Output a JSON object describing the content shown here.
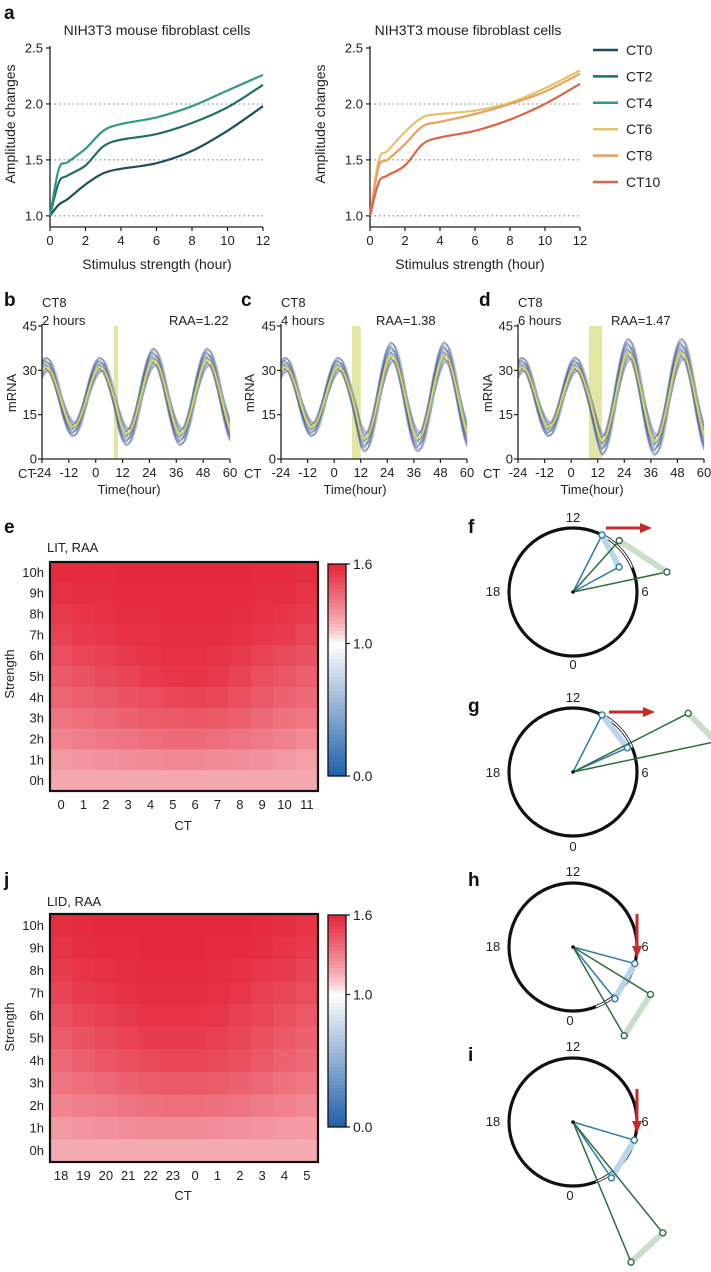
{
  "panels": {
    "a": "a",
    "b": "b",
    "c": "c",
    "d": "d",
    "e": "e",
    "f": "f",
    "g": "g",
    "h": "h",
    "i": "i",
    "j": "j"
  },
  "chart_data": [
    {
      "id": "a-left",
      "type": "line",
      "title": "NIH3T3 mouse fibroblast cells",
      "xlabel": "Stimulus strength (hour)",
      "ylabel": "Amplitude changes",
      "xlim": [
        0,
        12
      ],
      "ylim": [
        0.9,
        2.5
      ],
      "xticks": [
        0,
        2,
        4,
        6,
        8,
        10,
        12
      ],
      "yticks": [
        1.0,
        1.5,
        2.0,
        2.5
      ],
      "ytick_labels": [
        "1.0",
        "1.5",
        "2.0",
        "2.5"
      ],
      "hgrid_dotted": [
        1.0,
        1.5,
        2.0
      ],
      "x": [
        0,
        0.5,
        1,
        2,
        3,
        4,
        6,
        8,
        10,
        12
      ],
      "series": [
        {
          "name": "CT0",
          "color": "#1d4e5c",
          "values": [
            1.0,
            1.1,
            1.15,
            1.28,
            1.38,
            1.42,
            1.47,
            1.58,
            1.76,
            1.98
          ]
        },
        {
          "name": "CT2",
          "color": "#1d6d6b",
          "values": [
            1.0,
            1.3,
            1.36,
            1.45,
            1.62,
            1.68,
            1.73,
            1.83,
            1.97,
            2.17
          ]
        },
        {
          "name": "CT4",
          "color": "#2e9a8c",
          "values": [
            1.0,
            1.42,
            1.48,
            1.6,
            1.76,
            1.82,
            1.88,
            1.98,
            2.12,
            2.26
          ]
        }
      ]
    },
    {
      "id": "a-right",
      "type": "line",
      "title": "NIH3T3 mouse fibroblast cells",
      "xlabel": "Stimulus strength (hour)",
      "ylabel": "Amplitude changes",
      "xlim": [
        0,
        12
      ],
      "ylim": [
        0.9,
        2.5
      ],
      "xticks": [
        0,
        2,
        4,
        6,
        8,
        10,
        12
      ],
      "yticks": [
        1.0,
        1.5,
        2.0,
        2.5
      ],
      "ytick_labels": [
        "1.0",
        "1.5",
        "2.0",
        "2.5"
      ],
      "hgrid_dotted": [
        1.0,
        1.5,
        2.0
      ],
      "x": [
        0,
        0.5,
        1,
        2,
        3,
        4,
        6,
        8,
        10,
        12
      ],
      "series": [
        {
          "name": "CT6",
          "color": "#e3c46a",
          "values": [
            1.0,
            1.5,
            1.58,
            1.75,
            1.88,
            1.91,
            1.94,
            2.01,
            2.14,
            2.3
          ]
        },
        {
          "name": "CT8",
          "color": "#eba05c",
          "values": [
            1.0,
            1.44,
            1.5,
            1.64,
            1.8,
            1.84,
            1.91,
            2.0,
            2.11,
            2.27
          ]
        },
        {
          "name": "CT10",
          "color": "#db6447",
          "values": [
            1.0,
            1.3,
            1.36,
            1.45,
            1.64,
            1.7,
            1.76,
            1.86,
            2.0,
            2.18
          ]
        }
      ],
      "legend_position": "right"
    },
    {
      "id": "b",
      "type": "line",
      "ct_label": "CT8",
      "duration": "2 hours",
      "r_aa": "RAA=1.22",
      "xlabel": "Time(hour)",
      "ylabel": "mRNA",
      "xlim": [
        -24,
        60
      ],
      "ylim": [
        0,
        45
      ],
      "xticks": [
        -24,
        -12,
        0,
        12,
        24,
        36,
        48,
        60
      ],
      "yticks": [
        0,
        15,
        30,
        45
      ],
      "axis_prefix": "CT",
      "stimulus_window": [
        8,
        10
      ],
      "mean_amplitude_before": 11,
      "mean_amplitude_after": 13.5,
      "baseline": 21,
      "period": 24
    },
    {
      "id": "c",
      "type": "line",
      "ct_label": "CT8",
      "duration": "4 hours",
      "r_aa": "RAA=1.38",
      "xlabel": "Time(hour)",
      "ylabel": "mRNA",
      "xlim": [
        -24,
        60
      ],
      "ylim": [
        0,
        45
      ],
      "xticks": [
        -24,
        -12,
        0,
        12,
        24,
        36,
        48,
        60
      ],
      "yticks": [
        0,
        15,
        30,
        45
      ],
      "axis_prefix": "CT",
      "stimulus_window": [
        8,
        12
      ],
      "mean_amplitude_before": 11,
      "mean_amplitude_after": 15.2,
      "baseline": 21,
      "period": 24
    },
    {
      "id": "d",
      "type": "line",
      "ct_label": "CT8",
      "duration": "6 hours",
      "r_aa": "RAA=1.47",
      "xlabel": "Time(hour)",
      "ylabel": "mRNA",
      "xlim": [
        -24,
        60
      ],
      "ylim": [
        0,
        45
      ],
      "xticks": [
        -24,
        -12,
        0,
        12,
        24,
        36,
        48,
        60
      ],
      "yticks": [
        0,
        15,
        30,
        45
      ],
      "axis_prefix": "CT",
      "stimulus_window": [
        8,
        14
      ],
      "mean_amplitude_before": 11,
      "mean_amplitude_after": 16.2,
      "baseline": 21,
      "period": 24
    },
    {
      "id": "e",
      "type": "heatmap",
      "title": "LIT, RAA",
      "xlabel": "CT",
      "ylabel": "Strength",
      "xticks": [
        "0",
        "1",
        "2",
        "3",
        "4",
        "5",
        "6",
        "7",
        "8",
        "9",
        "10",
        "11"
      ],
      "yticks": [
        "10h",
        "9h",
        "8h",
        "7h",
        "6h",
        "5h",
        "4h",
        "3h",
        "2h",
        "1h",
        "0h"
      ],
      "colorbar": {
        "min": 0.0,
        "max": 1.6,
        "ticks": [
          "1.6",
          "1.0",
          "0.0"
        ],
        "low_color": "#1f5fa8",
        "mid_color": "#ffffff",
        "high_color": "#e5263a"
      },
      "values": [
        [
          1.58,
          1.58,
          1.58,
          1.59,
          1.59,
          1.59,
          1.59,
          1.59,
          1.59,
          1.58,
          1.58,
          1.57
        ],
        [
          1.56,
          1.57,
          1.57,
          1.58,
          1.58,
          1.58,
          1.58,
          1.58,
          1.58,
          1.57,
          1.57,
          1.55
        ],
        [
          1.53,
          1.55,
          1.56,
          1.57,
          1.57,
          1.58,
          1.58,
          1.58,
          1.57,
          1.56,
          1.55,
          1.52
        ],
        [
          1.5,
          1.52,
          1.54,
          1.56,
          1.56,
          1.57,
          1.57,
          1.57,
          1.56,
          1.54,
          1.52,
          1.48
        ],
        [
          1.46,
          1.48,
          1.51,
          1.53,
          1.55,
          1.56,
          1.56,
          1.55,
          1.53,
          1.5,
          1.47,
          1.44
        ],
        [
          1.42,
          1.44,
          1.47,
          1.49,
          1.52,
          1.54,
          1.55,
          1.53,
          1.5,
          1.46,
          1.43,
          1.4
        ],
        [
          1.38,
          1.4,
          1.42,
          1.44,
          1.46,
          1.48,
          1.5,
          1.48,
          1.45,
          1.42,
          1.39,
          1.36
        ],
        [
          1.33,
          1.35,
          1.37,
          1.39,
          1.41,
          1.42,
          1.43,
          1.42,
          1.4,
          1.37,
          1.34,
          1.32
        ],
        [
          1.28,
          1.3,
          1.32,
          1.33,
          1.35,
          1.36,
          1.36,
          1.35,
          1.33,
          1.31,
          1.29,
          1.26
        ],
        [
          1.22,
          1.23,
          1.24,
          1.25,
          1.26,
          1.27,
          1.27,
          1.26,
          1.25,
          1.24,
          1.22,
          1.2
        ],
        [
          1.18,
          1.18,
          1.18,
          1.18,
          1.18,
          1.18,
          1.18,
          1.18,
          1.18,
          1.18,
          1.18,
          1.18
        ]
      ]
    },
    {
      "id": "j",
      "type": "heatmap",
      "title": "LID, RAA",
      "xlabel": "CT",
      "ylabel": "Strength",
      "xticks": [
        "18",
        "19",
        "20",
        "21",
        "22",
        "23",
        "0",
        "1",
        "2",
        "3",
        "4",
        "5"
      ],
      "yticks": [
        "10h",
        "9h",
        "8h",
        "7h",
        "6h",
        "5h",
        "4h",
        "3h",
        "2h",
        "1h",
        "0h"
      ],
      "colorbar": {
        "min": 0.0,
        "max": 1.6,
        "ticks": [
          "1.6",
          "1.0",
          "0.0"
        ],
        "low_color": "#1f5fa8",
        "mid_color": "#ffffff",
        "high_color": "#e5263a"
      },
      "values": [
        [
          1.57,
          1.58,
          1.59,
          1.59,
          1.59,
          1.59,
          1.59,
          1.59,
          1.59,
          1.58,
          1.57,
          1.55
        ],
        [
          1.55,
          1.57,
          1.58,
          1.58,
          1.59,
          1.59,
          1.59,
          1.58,
          1.58,
          1.57,
          1.55,
          1.52
        ],
        [
          1.52,
          1.55,
          1.56,
          1.57,
          1.58,
          1.58,
          1.58,
          1.57,
          1.56,
          1.54,
          1.52,
          1.49
        ],
        [
          1.49,
          1.52,
          1.54,
          1.56,
          1.57,
          1.57,
          1.57,
          1.56,
          1.54,
          1.51,
          1.48,
          1.46
        ],
        [
          1.45,
          1.48,
          1.51,
          1.53,
          1.55,
          1.55,
          1.55,
          1.54,
          1.51,
          1.48,
          1.45,
          1.42
        ],
        [
          1.41,
          1.44,
          1.47,
          1.5,
          1.52,
          1.52,
          1.52,
          1.51,
          1.48,
          1.45,
          1.42,
          1.39
        ],
        [
          1.37,
          1.4,
          1.43,
          1.45,
          1.47,
          1.48,
          1.48,
          1.47,
          1.45,
          1.42,
          1.39,
          1.36
        ],
        [
          1.33,
          1.35,
          1.37,
          1.39,
          1.41,
          1.42,
          1.42,
          1.41,
          1.39,
          1.37,
          1.34,
          1.32
        ],
        [
          1.28,
          1.3,
          1.31,
          1.33,
          1.34,
          1.35,
          1.35,
          1.34,
          1.33,
          1.31,
          1.29,
          1.27
        ],
        [
          1.22,
          1.23,
          1.24,
          1.25,
          1.26,
          1.26,
          1.26,
          1.25,
          1.24,
          1.23,
          1.22,
          1.21
        ],
        [
          1.17,
          1.17,
          1.17,
          1.17,
          1.17,
          1.17,
          1.17,
          1.17,
          1.17,
          1.17,
          1.17,
          1.17
        ]
      ]
    }
  ],
  "clocks": [
    {
      "id": "f",
      "labels": [
        "12",
        "6",
        "0",
        "18"
      ],
      "arrow": "right"
    },
    {
      "id": "g",
      "labels": [
        "12",
        "6",
        "0",
        "18"
      ],
      "arrow": "right"
    },
    {
      "id": "h",
      "labels": [
        "12",
        "6",
        "0",
        "18"
      ],
      "arrow": "down"
    },
    {
      "id": "i",
      "labels": [
        "12",
        "6",
        "0",
        "18"
      ],
      "arrow": "down"
    }
  ]
}
